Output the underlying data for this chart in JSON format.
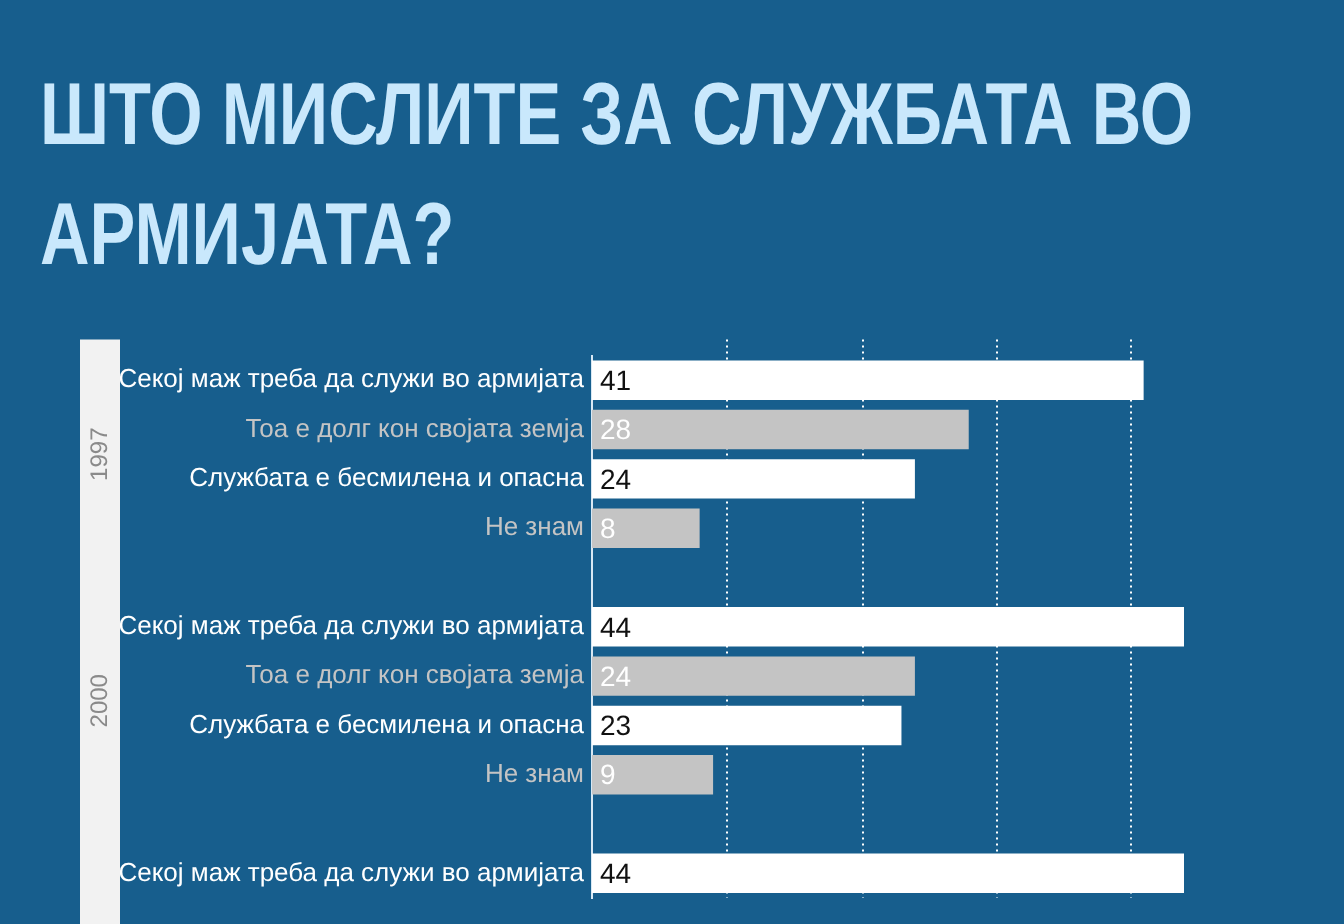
{
  "chart_data": {
    "type": "bar",
    "orientation": "horizontal",
    "title": "ШТО МИСЛИТЕ ЗА СЛУЖБАТА ВО АРМИЈАТА?",
    "categories": [
      "Секој маж треба да служи во армијата",
      "Тоа е долг кон својата земја",
      "Службата е бесмилена и опасна",
      "Не знам",
      null,
      "Секој маж треба да служи во армијата",
      "Тоа е долг кон својата земја",
      "Службата е бесмилена и опасна",
      "Не знам",
      null,
      "Секој маж треба да служи во армијата"
    ],
    "values": [
      41,
      28,
      24,
      8,
      null,
      44,
      24,
      23,
      9,
      null,
      44
    ],
    "colors": [
      "#ffffff",
      "#c4c4c4",
      "#ffffff",
      "#c4c4c4",
      "#c4c4c4",
      "#ffffff",
      "#c4c4c4",
      "#ffffff",
      "#c4c4c4",
      "#c4c4c4",
      "#ffffff"
    ],
    "xticks": [
      {
        "value": 10,
        "label": null
      },
      {
        "value": 20,
        "label": null
      },
      {
        "value": 30,
        "label": null
      },
      {
        "value": 40,
        "label": null
      }
    ],
    "tick_labels": "y",
    "grid": "x",
    "legend": false,
    "data_labels": true,
    "annotations": [
      "1997",
      "2000"
    ]
  }
}
